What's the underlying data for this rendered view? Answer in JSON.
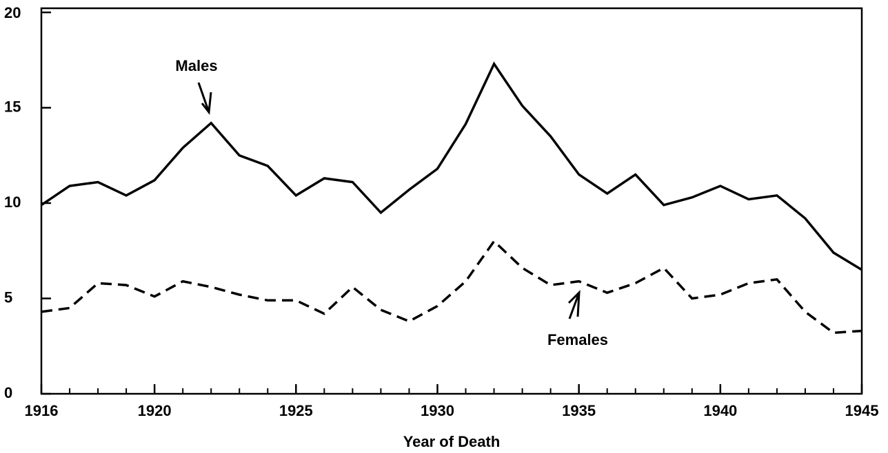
{
  "chart_data": {
    "type": "line",
    "xlabel": "Year of Death",
    "x": [
      1916,
      1917,
      1918,
      1919,
      1920,
      1921,
      1922,
      1923,
      1924,
      1925,
      1926,
      1927,
      1928,
      1929,
      1930,
      1931,
      1932,
      1933,
      1934,
      1935,
      1936,
      1937,
      1938,
      1939,
      1940,
      1941,
      1942,
      1943,
      1944,
      1945
    ],
    "series": [
      {
        "name": "Males",
        "color": "#000000",
        "line_style": "solid",
        "values": [
          9.9,
          10.9,
          11.1,
          10.4,
          11.2,
          12.9,
          14.2,
          12.5,
          11.95,
          10.4,
          11.3,
          11.1,
          9.5,
          10.7,
          11.8,
          14.15,
          17.3,
          15.1,
          13.5,
          11.5,
          10.5,
          11.5,
          9.9,
          10.3,
          10.9,
          10.2,
          10.4,
          9.2,
          7.4,
          6.5
        ]
      },
      {
        "name": "Females",
        "color": "#000000",
        "line_style": "dashed",
        "values": [
          4.3,
          4.5,
          5.8,
          5.7,
          5.1,
          5.9,
          5.6,
          5.2,
          4.9,
          4.9,
          4.2,
          5.6,
          4.4,
          3.8,
          4.6,
          5.9,
          8.0,
          6.6,
          5.7,
          5.9,
          5.3,
          5.8,
          6.6,
          5.0,
          5.2,
          5.8,
          6.0,
          4.3,
          3.2,
          3.3
        ]
      }
    ],
    "xlim": [
      1916,
      1945
    ],
    "xticks": [
      1916,
      1920,
      1925,
      1930,
      1935,
      1940,
      1945
    ],
    "ylim": [
      0,
      20
    ],
    "yticks": [
      0,
      5,
      10,
      15,
      20
    ],
    "grid": false
  }
}
